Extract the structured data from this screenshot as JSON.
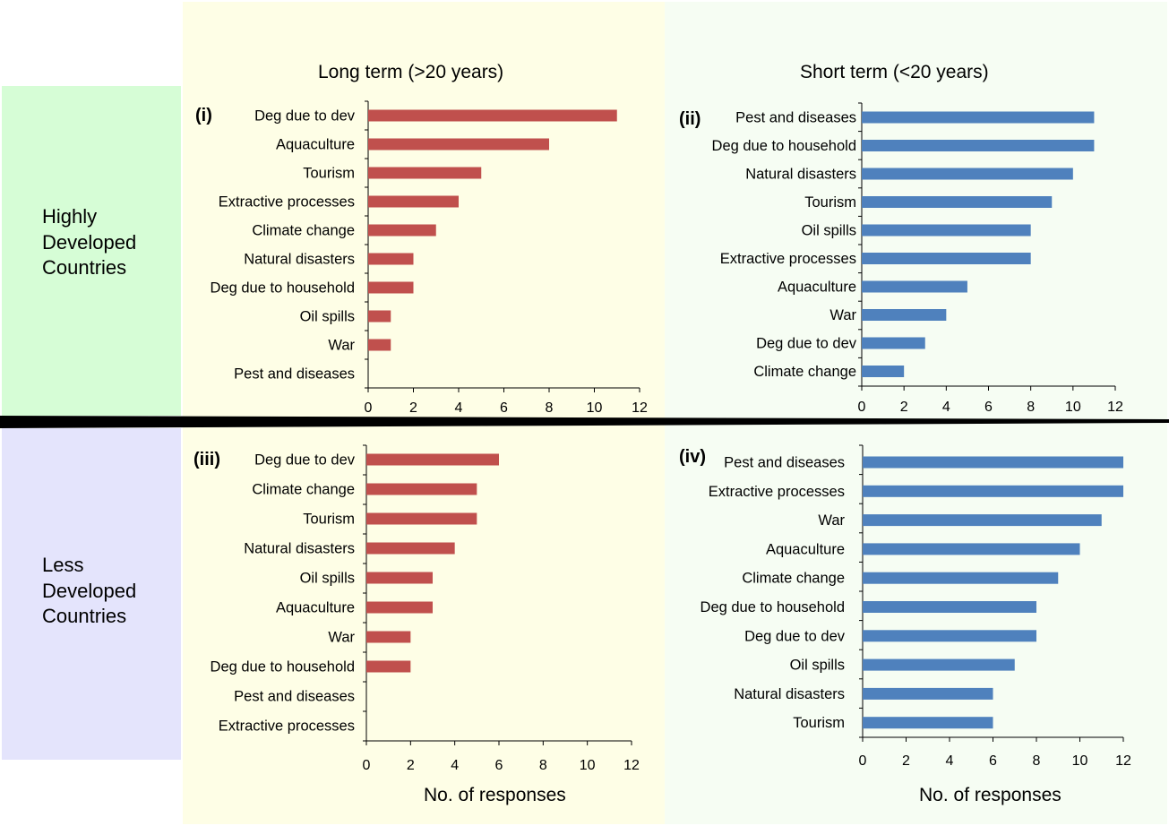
{
  "rows": {
    "highly": [
      "Highly",
      "Developed",
      "Countries"
    ],
    "less": [
      "Less",
      "Developed",
      "Countries"
    ]
  },
  "columns": {
    "long": "Long term (>20 years)",
    "short": "Short term (<20 years)"
  },
  "x_axis_title": "No. of responses",
  "colors": {
    "long_bar": "#c0504d",
    "short_bar": "#4f81bd",
    "highly_bg": "#d6fdd6",
    "less_bg": "#e4e4fc",
    "long_bg": "#fefee6",
    "short_bg": "#f6fdf3"
  },
  "chart_data": [
    {
      "type": "bar",
      "orientation": "horizontal",
      "panel": "(i)",
      "row": "Highly Developed Countries",
      "column": "Long term (>20 years)",
      "categories": [
        "Deg due to dev",
        "Aquaculture",
        "Tourism",
        "Extractive processes",
        "Climate change",
        "Natural disasters",
        "Deg due to household",
        "Oil spills",
        "War",
        "Pest and diseases"
      ],
      "values": [
        11,
        8,
        5,
        4,
        3,
        2,
        2,
        1,
        1,
        0
      ],
      "xlim": [
        0,
        12
      ],
      "xticks": [
        0,
        2,
        4,
        6,
        8,
        10,
        12
      ],
      "color": "#c0504d"
    },
    {
      "type": "bar",
      "orientation": "horizontal",
      "panel": "(ii)",
      "row": "Highly Developed Countries",
      "column": "Short term (<20 years)",
      "categories": [
        "Pest and diseases",
        "Deg due to household",
        "Natural disasters",
        "Tourism",
        "Oil spills",
        "Extractive processes",
        "Aquaculture",
        "War",
        "Deg due to dev",
        "Climate change"
      ],
      "values": [
        11,
        11,
        10,
        9,
        8,
        8,
        5,
        4,
        3,
        2
      ],
      "xlim": [
        0,
        12
      ],
      "xticks": [
        0,
        2,
        4,
        6,
        8,
        10,
        12
      ],
      "color": "#4f81bd"
    },
    {
      "type": "bar",
      "orientation": "horizontal",
      "panel": "(iii)",
      "row": "Less Developed Countries",
      "column": "Long term (>20 years)",
      "categories": [
        "Deg due to dev",
        "Climate change",
        "Tourism",
        "Natural disasters",
        "Oil spills",
        "Aquaculture",
        "War",
        "Deg due to household",
        "Pest and diseases",
        "Extractive processes"
      ],
      "values": [
        6,
        5,
        5,
        4,
        3,
        3,
        2,
        2,
        0,
        0
      ],
      "xlim": [
        0,
        12
      ],
      "xticks": [
        0,
        2,
        4,
        6,
        8,
        10,
        12
      ],
      "xlabel": "No. of responses",
      "color": "#c0504d"
    },
    {
      "type": "bar",
      "orientation": "horizontal",
      "panel": "(iv)",
      "row": "Less Developed Countries",
      "column": "Short term (<20 years)",
      "categories": [
        "Pest and diseases",
        "Extractive processes",
        "War",
        "Aquaculture",
        "Climate change",
        "Deg due to household",
        "Deg due to dev",
        "Oil spills",
        "Natural disasters",
        "Tourism"
      ],
      "values": [
        12,
        12,
        11,
        10,
        9,
        8,
        8,
        7,
        6,
        6
      ],
      "xlim": [
        0,
        12
      ],
      "xticks": [
        0,
        2,
        4,
        6,
        8,
        10,
        12
      ],
      "xlabel": "No. of responses",
      "color": "#4f81bd"
    }
  ]
}
